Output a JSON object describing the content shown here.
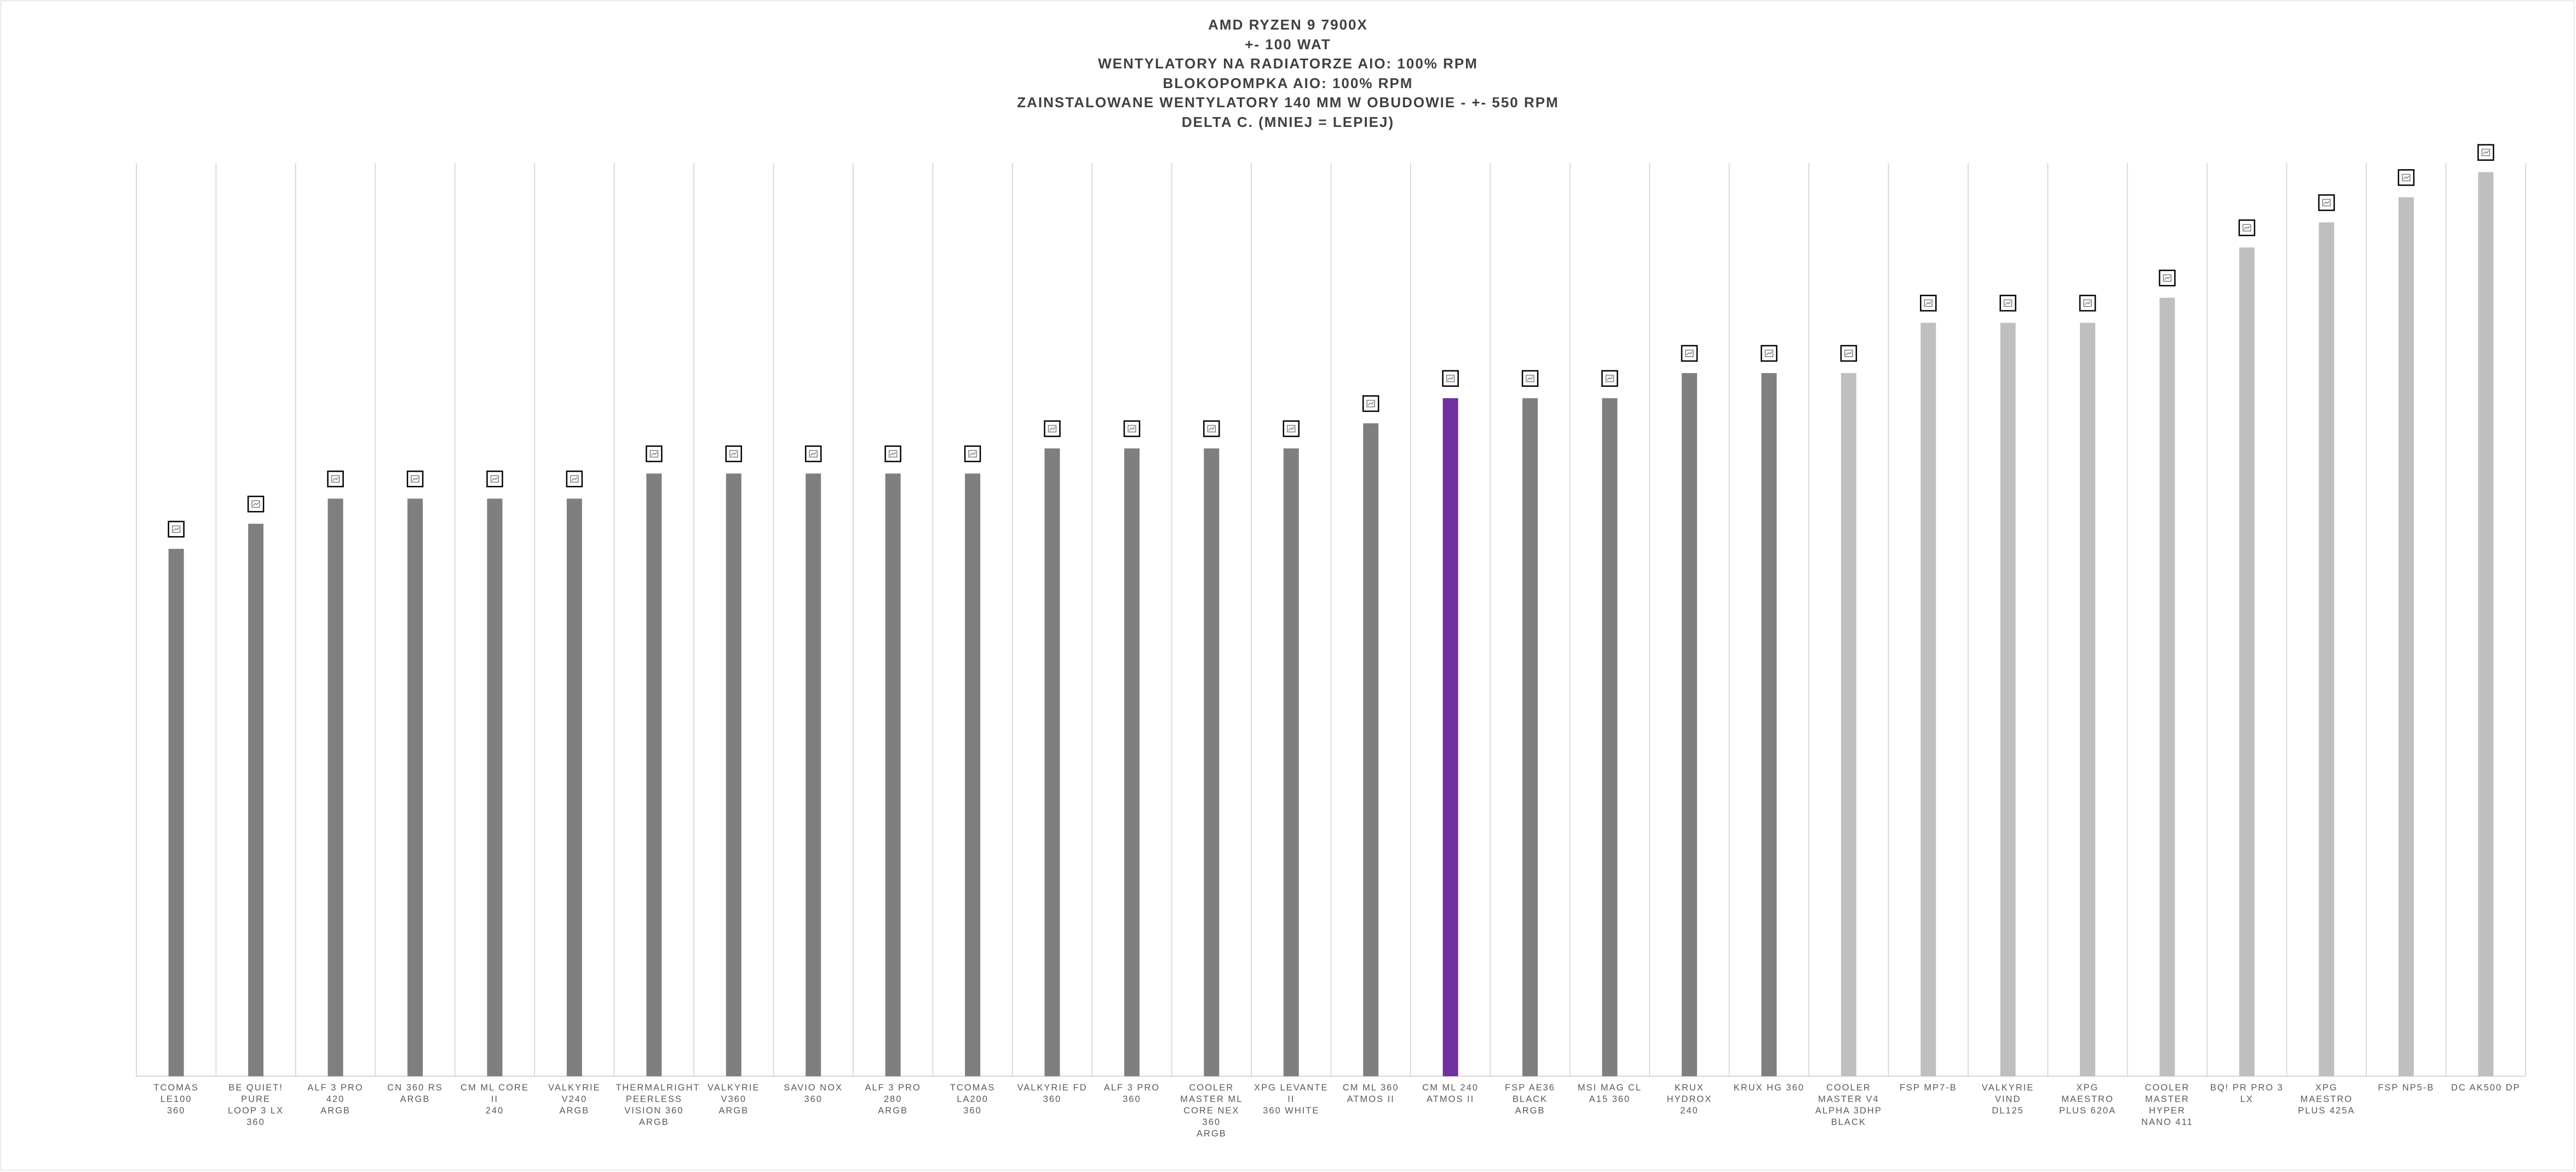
{
  "chart_data": {
    "type": "bar",
    "title": [
      "AMD RYZEN 9 7900X",
      "+- 100 WAT",
      "WENTYLATORY NA RADIATORZE AIO: 100% RPM",
      "BLOKOPOMPKA AIO: 100% RPM",
      "ZAINSTALOWANE WENTYLATORY 140 MM W OBUDOWIE - +- 550 RPM",
      "DELTA C. (MNIEJ = LEPIEJ)"
    ],
    "xlabel": "",
    "ylabel": "",
    "ylim": [
      0,
      40
    ],
    "grid": "vertical",
    "legend": "none",
    "categories": [
      "TCOMAS LE100\n360",
      "BE QUIET! PURE\nLOOP 3 LX 360",
      "ALF 3 PRO 420\nARGB",
      "CN 360 RS\nARGB",
      "CM ML CORE II\n240",
      "VALKYRIE V240\nARGB",
      "THERMALRIGHT\nPEERLESS\nVISION 360\nARGB",
      "VALKYRIE V360\nARGB",
      "SAVIO NOX 360",
      "ALF 3 PRO 280\nARGB",
      "TCOMAS LA200\n360",
      "VALKYRIE FD\n360",
      "ALF 3 PRO 360",
      "COOLER\nMASTER ML\nCORE NEX 360\nARGB",
      "XPG LEVANTE II\n360 WHITE",
      "CM ML 360\nATMOS II",
      "CM ML 240\nATMOS II",
      "FSP AE36 BLACK\nARGB",
      "MSI MAG CL\nA15 360",
      "KRUX HYDROX\n240",
      "KRUX HG 360",
      "COOLER\nMASTER V4\nALPHA 3DHP\nBLACK",
      "FSP MP7-B",
      "VALKYRIE VIND\nDL125",
      "XPG MAESTRO\nPLUS 620A",
      "COOLER\nMASTER HYPER\nNANO 411",
      "BQ! PR PRO 3\nLX",
      "XPG MAESTRO\nPLUS 425A",
      "FSP NP5-B",
      "DC AK500 DP"
    ],
    "values": [
      21,
      22,
      23,
      23,
      23,
      23,
      24,
      24,
      24,
      24,
      24,
      25,
      25,
      25,
      25,
      26,
      27,
      27,
      27,
      28,
      28,
      28,
      30,
      30,
      30,
      31,
      33,
      34,
      35,
      36
    ],
    "bar_colors": [
      "#7f7f7f",
      "#7f7f7f",
      "#7f7f7f",
      "#7f7f7f",
      "#7f7f7f",
      "#7f7f7f",
      "#7f7f7f",
      "#7f7f7f",
      "#7f7f7f",
      "#7f7f7f",
      "#7f7f7f",
      "#7f7f7f",
      "#7f7f7f",
      "#7f7f7f",
      "#7f7f7f",
      "#7f7f7f",
      "#7030a0",
      "#7f7f7f",
      "#7f7f7f",
      "#7f7f7f",
      "#7f7f7f",
      "#bfbfbf",
      "#bfbfbf",
      "#bfbfbf",
      "#bfbfbf",
      "#bfbfbf",
      "#bfbfbf",
      "#bfbfbf",
      "#bfbfbf",
      "#bfbfbf"
    ],
    "highlight_color": "#7030a0",
    "default_color": "#7f7f7f",
    "secondary_color": "#bfbfbf",
    "data_label_icon": "chart-icon"
  }
}
